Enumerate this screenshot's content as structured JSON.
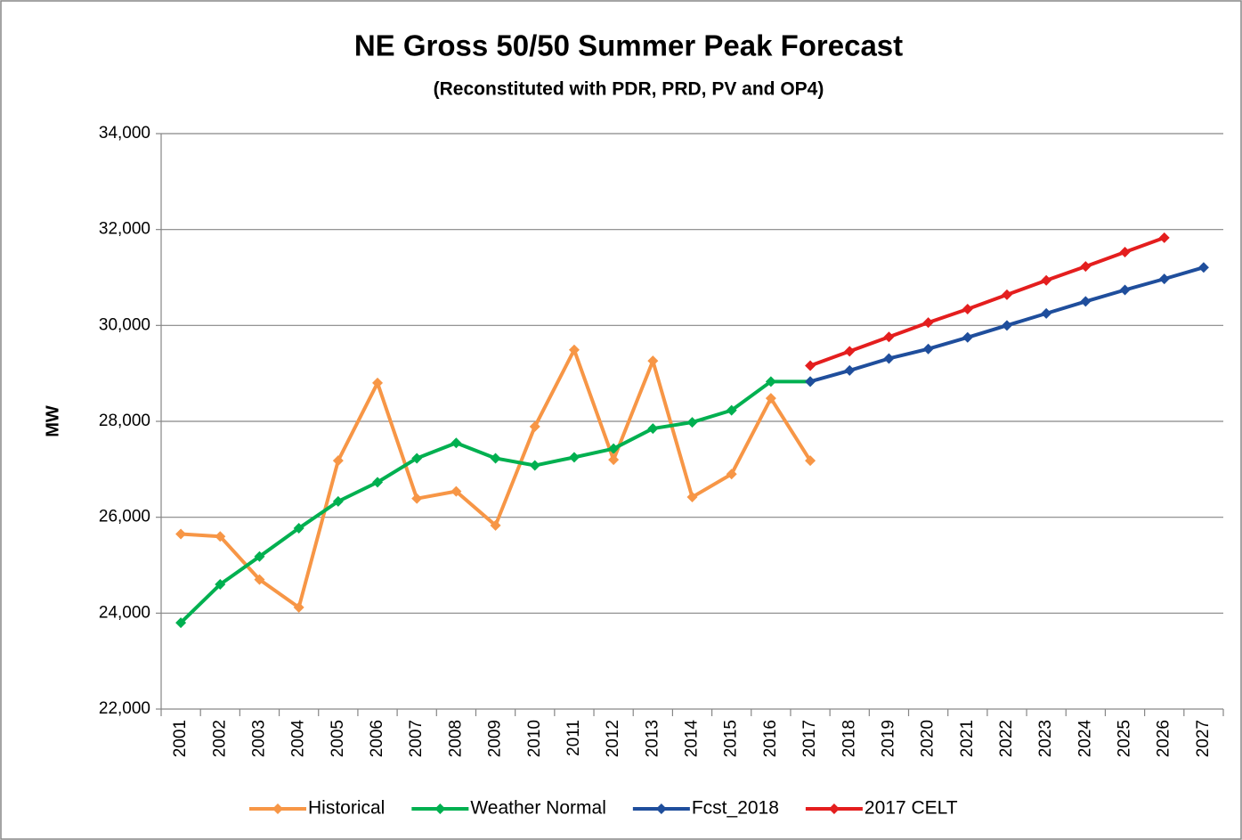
{
  "chart_data": {
    "type": "line",
    "title": "NE Gross 50/50 Summer Peak Forecast",
    "subtitle": "(Reconstituted with PDR, PRD, PV and OP4)",
    "y_label": "MW",
    "categories": [
      "2001",
      "2002",
      "2003",
      "2004",
      "2005",
      "2006",
      "2007",
      "2008",
      "2009",
      "2010",
      "2011",
      "2012",
      "2013",
      "2014",
      "2015",
      "2016",
      "2017",
      "2018",
      "2019",
      "2020",
      "2021",
      "2022",
      "2023",
      "2024",
      "2025",
      "2026",
      "2027"
    ],
    "series": [
      {
        "name": "Historical",
        "color": "#f79646",
        "values": [
          25650,
          25600,
          24700,
          24120,
          27180,
          28800,
          26390,
          26540,
          25830,
          27890,
          29490,
          27200,
          29260,
          26420,
          26900,
          28480,
          27180,
          null,
          null,
          null,
          null,
          null,
          null,
          null,
          null,
          null,
          null
        ]
      },
      {
        "name": "Weather Normal",
        "color": "#00b050",
        "values": [
          23800,
          24600,
          25180,
          25770,
          26330,
          26730,
          27230,
          27550,
          27230,
          27080,
          27250,
          27430,
          27850,
          27980,
          28230,
          28830,
          28830,
          null,
          null,
          null,
          null,
          null,
          null,
          null,
          null,
          null,
          null
        ]
      },
      {
        "name": "Fcst_2018",
        "color": "#1f4e9c",
        "values": [
          null,
          null,
          null,
          null,
          null,
          null,
          null,
          null,
          null,
          null,
          null,
          null,
          null,
          null,
          null,
          null,
          28830,
          29060,
          29310,
          29510,
          29750,
          30000,
          30250,
          30500,
          30740,
          30970,
          31210
        ]
      },
      {
        "name": "2017 CELT",
        "color": "#e41e1e",
        "values": [
          null,
          null,
          null,
          null,
          null,
          null,
          null,
          null,
          null,
          null,
          null,
          null,
          null,
          null,
          null,
          null,
          29160,
          29460,
          29760,
          30060,
          30340,
          30640,
          30940,
          31230,
          31530,
          31830,
          null
        ]
      }
    ],
    "ylim": [
      22000,
      34000
    ],
    "yticks": [
      {
        "value": 22000,
        "label": "22,000"
      },
      {
        "value": 24000,
        "label": "24,000"
      },
      {
        "value": 26000,
        "label": "26,000"
      },
      {
        "value": 28000,
        "label": "28,000"
      },
      {
        "value": 30000,
        "label": "30,000"
      },
      {
        "value": 32000,
        "label": "32,000"
      },
      {
        "value": 34000,
        "label": "34,000"
      }
    ],
    "grid": true,
    "legend": "bottom"
  }
}
